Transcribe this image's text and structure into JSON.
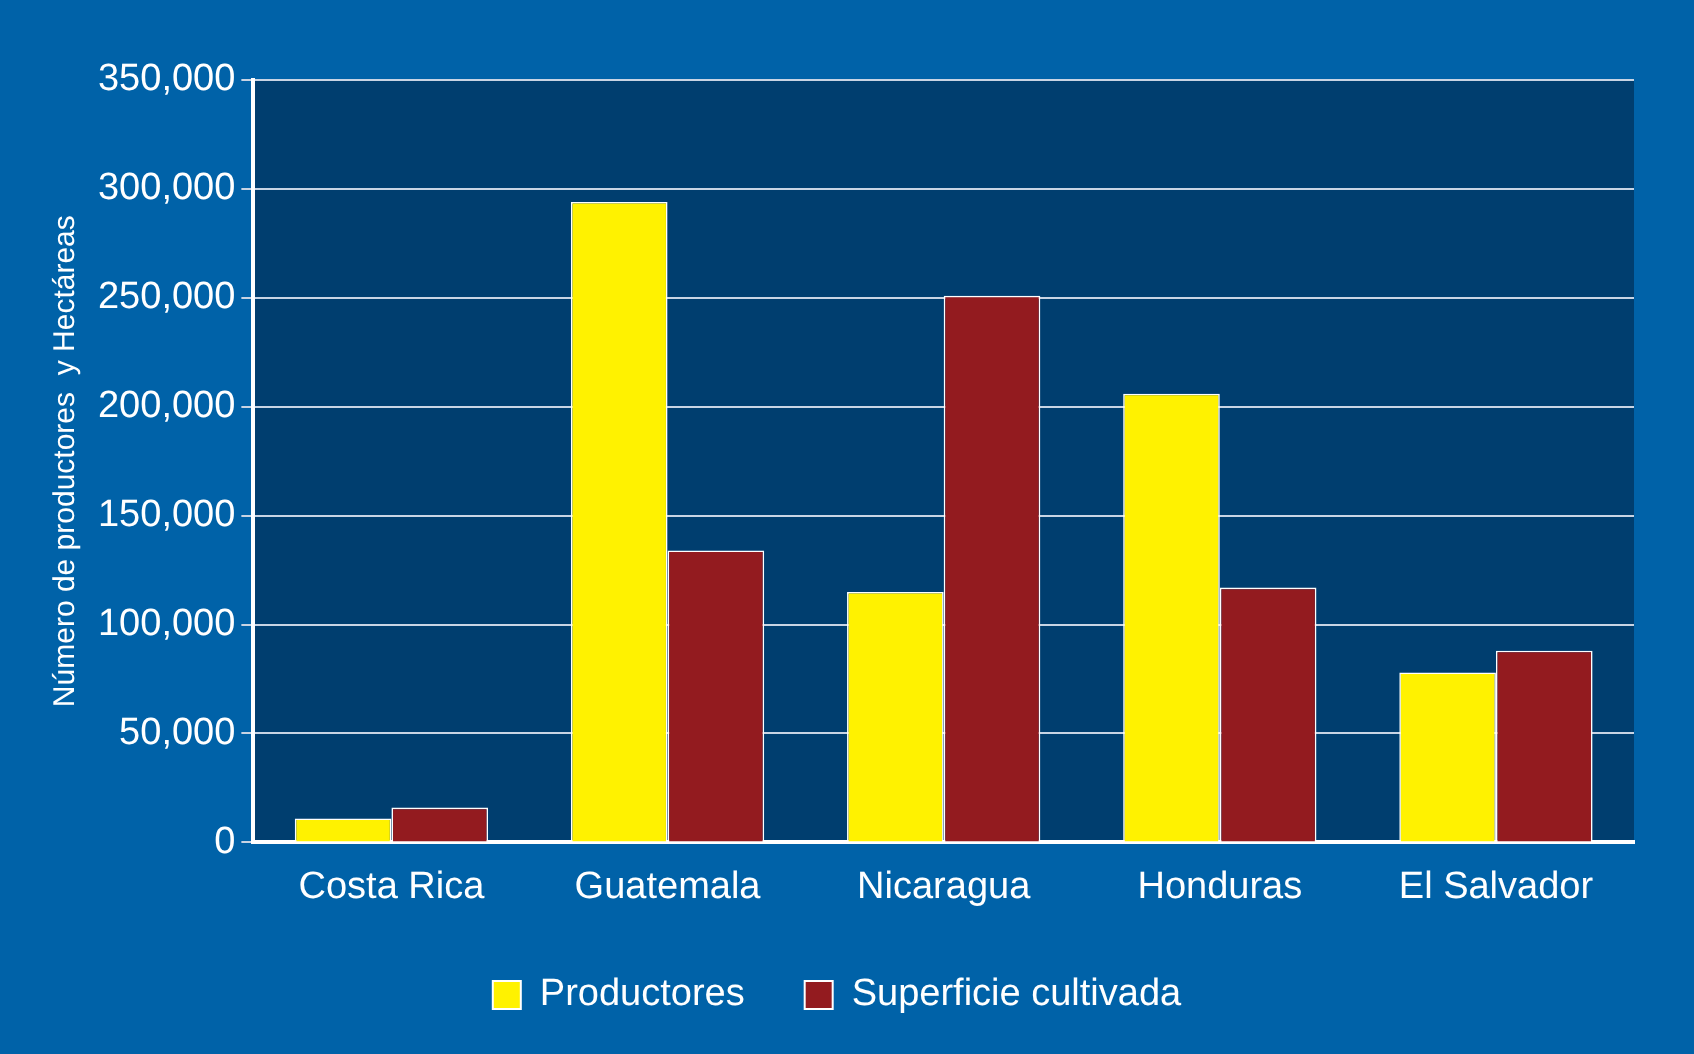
{
  "chart_data": {
    "type": "bar",
    "ylabel": "Número de productores  y Hectáreas",
    "categories": [
      "Costa Rica",
      "Guatemala",
      "Nicaragua",
      "Honduras",
      "El Salvador"
    ],
    "series": [
      {
        "name": "Productores",
        "color": "#fff200",
        "values": [
          11000,
          294000,
          115000,
          206000,
          78000
        ]
      },
      {
        "name": "Superficie cultivada",
        "color": "#931b1f",
        "values": [
          16000,
          134000,
          251000,
          117000,
          88000
        ]
      }
    ],
    "ylim": [
      0,
      350000
    ],
    "yticks": [
      {
        "value": 0,
        "label": "0"
      },
      {
        "value": 50000,
        "label": "50,000"
      },
      {
        "value": 100000,
        "label": "100,000"
      },
      {
        "value": 150000,
        "label": "150,000"
      },
      {
        "value": 200000,
        "label": "200,000"
      },
      {
        "value": 250000,
        "label": "250,000"
      },
      {
        "value": 300000,
        "label": "300,000"
      },
      {
        "value": 350000,
        "label": "350,000"
      }
    ],
    "grid": "y",
    "legend": "bottom"
  }
}
